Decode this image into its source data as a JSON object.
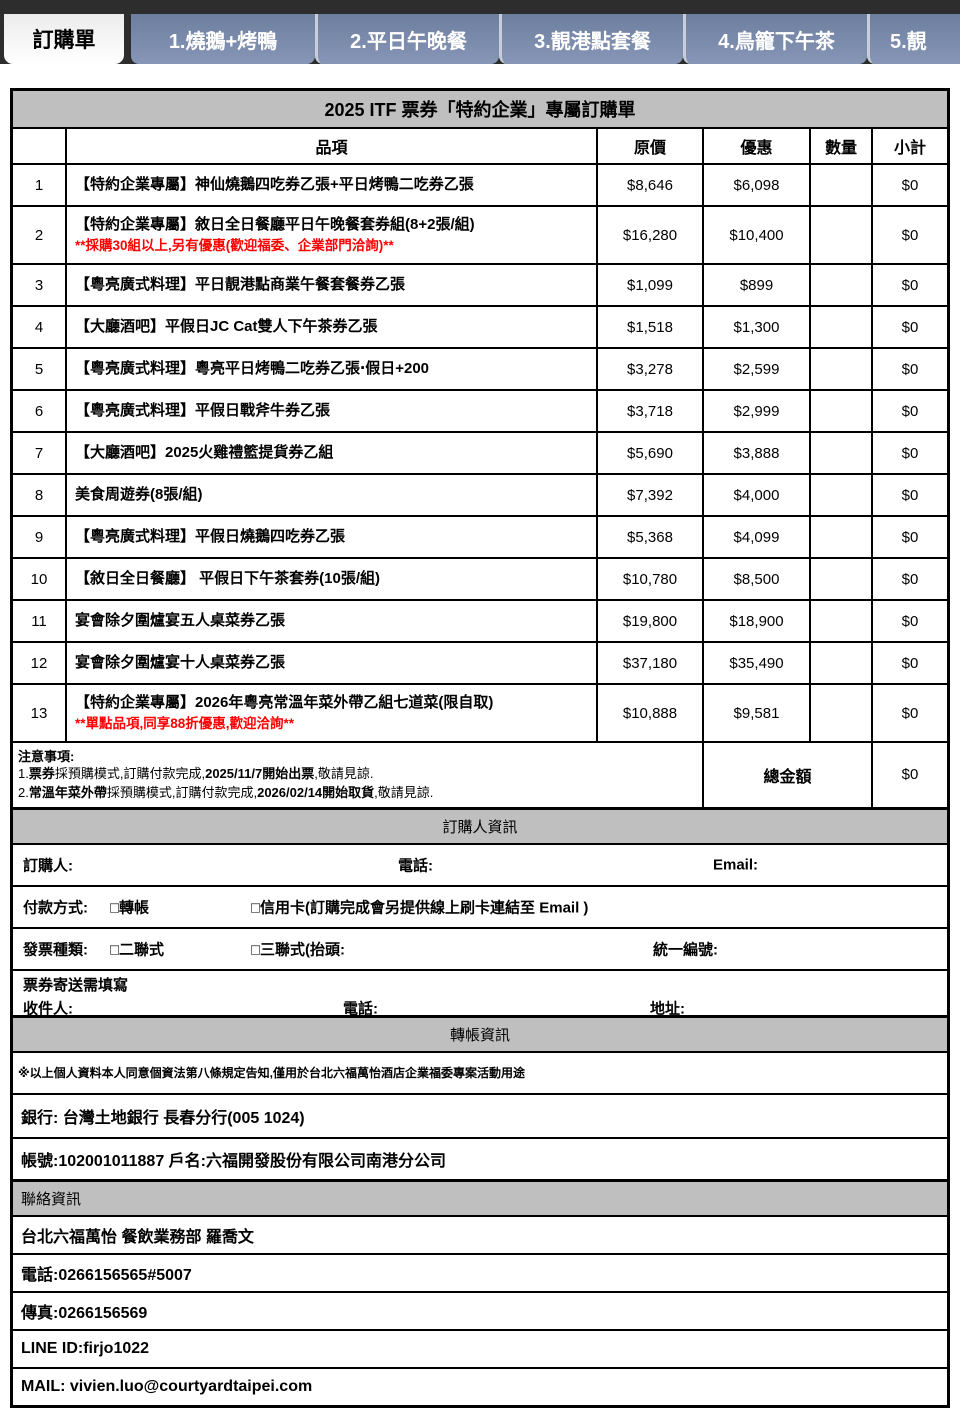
{
  "colors": {
    "topbar": "#2d2d2d",
    "tab_blue": "#7e8fb2",
    "band_gray": "#bfbfbf",
    "alert_red": "#ff0000"
  },
  "tabs": {
    "items": [
      {
        "label": "訂購單",
        "active": true
      },
      {
        "label": "1.燒鵝+烤鴨",
        "active": false
      },
      {
        "label": "2.平日午晚餐",
        "active": false
      },
      {
        "label": "3.靚港點套餐",
        "active": false
      },
      {
        "label": "4.鳥籠下午茶",
        "active": false
      },
      {
        "label": "5.靚",
        "active": false,
        "cut": true
      }
    ]
  },
  "table": {
    "title": "2025 ITF 票券「特約企業」專屬訂購單",
    "columns": [
      "",
      "品項",
      "原價",
      "優惠",
      "數量",
      "小計"
    ],
    "rows": [
      {
        "no": "1",
        "item": "【特約企業專屬】神仙燒鵝四吃券乙張+平日烤鴨二吃券乙張",
        "note": "",
        "orig": "$8,646",
        "deal": "$6,098",
        "qty": "",
        "subtotal": "$0"
      },
      {
        "no": "2",
        "item": "【特約企業專屬】敘日全日餐廳平日午晚餐套券組(8+2張/組)",
        "note": "**採購30組以上,另有優惠(歡迎福委、企業部門洽詢)**",
        "orig": "$16,280",
        "deal": "$10,400",
        "qty": "",
        "subtotal": "$0"
      },
      {
        "no": "3",
        "item": "【粵亮廣式料理】平日靚港點商業午餐套餐券乙張",
        "note": "",
        "orig": "$1,099",
        "deal": "$899",
        "qty": "",
        "subtotal": "$0"
      },
      {
        "no": "4",
        "item": "【大廳酒吧】平假日JC Cat雙人下午茶券乙張",
        "note": "",
        "orig": "$1,518",
        "deal": "$1,300",
        "qty": "",
        "subtotal": "$0"
      },
      {
        "no": "5",
        "item": "【粵亮廣式料理】粵亮平日烤鴨二吃券乙張‧假日+200",
        "note": "",
        "orig": "$3,278",
        "deal": "$2,599",
        "qty": "",
        "subtotal": "$0"
      },
      {
        "no": "6",
        "item": "【粵亮廣式料理】平假日戰斧牛券乙張",
        "note": "",
        "orig": "$3,718",
        "deal": "$2,999",
        "qty": "",
        "subtotal": "$0"
      },
      {
        "no": "7",
        "item": "【大廳酒吧】2025火雞禮籃提貨券乙組",
        "note": "",
        "orig": "$5,690",
        "deal": "$3,888",
        "qty": "",
        "subtotal": "$0"
      },
      {
        "no": "8",
        "item": "美食周遊券(8張/組)",
        "note": "",
        "orig": "$7,392",
        "deal": "$4,000",
        "qty": "",
        "subtotal": "$0"
      },
      {
        "no": "9",
        "item": "【粵亮廣式料理】平假日燒鵝四吃券乙張",
        "note": "",
        "orig": "$5,368",
        "deal": "$4,099",
        "qty": "",
        "subtotal": "$0"
      },
      {
        "no": "10",
        "item": "【敘日全日餐廳】 平假日下午茶套券(10張/組)",
        "note": "",
        "orig": "$10,780",
        "deal": "$8,500",
        "qty": "",
        "subtotal": "$0"
      },
      {
        "no": "11",
        "item": "宴會除夕圍爐宴五人桌菜券乙張",
        "note": "",
        "orig": "$19,800",
        "deal": "$18,900",
        "qty": "",
        "subtotal": "$0"
      },
      {
        "no": "12",
        "item": "宴會除夕圍爐宴十人桌菜券乙張",
        "note": "",
        "orig": "$37,180",
        "deal": "$35,490",
        "qty": "",
        "subtotal": "$0"
      },
      {
        "no": "13",
        "item": "【特約企業專屬】2026年粵亮常溫年菜外帶乙組七道菜(限自取)",
        "note": "**單點品項,同享88折優惠,歡迎洽詢**",
        "orig": "$10,888",
        "deal": "$9,581",
        "qty": "",
        "subtotal": "$0"
      }
    ],
    "notes": {
      "title": "注意事項:",
      "lines": [
        [
          {
            "t": "1."
          },
          {
            "t": "票券",
            "b": true
          },
          {
            "t": "採預購模式,訂購付款完成,"
          },
          {
            "t": "2025/11/7開始出票",
            "b": true
          },
          {
            "t": ",敬請見諒."
          }
        ],
        [
          {
            "t": "2."
          },
          {
            "t": "常溫年菜外帶",
            "b": true
          },
          {
            "t": "採預購模式,訂購付款完成,"
          },
          {
            "t": "2026/02/14開始取貨",
            "b": true
          },
          {
            "t": ",敬請見諒."
          }
        ]
      ]
    },
    "total_label": "總金額",
    "total_value": "$0"
  },
  "sections": {
    "orderer_band": "訂購人資訊",
    "buyer": {
      "name_label": "訂購人:",
      "phone_label": "電話:",
      "email_label": "Email:"
    },
    "payment": {
      "label": "付款方式:",
      "transfer": "□轉帳",
      "credit": "□信用卡(訂購完成會另提供線上刷卡連結至 Email )"
    },
    "invoice": {
      "label": "發票種類:",
      "duplicate": "□二聯式",
      "triplicate": "□三聯式(抬頭:",
      "tax_label": "統一編號:"
    },
    "shipping": {
      "title": "票券寄送需填寫",
      "recipient": "收件人:",
      "phone": "電話:",
      "address": "地址:"
    },
    "transfer_band": "轉帳資訊",
    "privacy": "※以上個人資料本人同意個資法第八條規定告知,僅用於台北六福萬怡酒店企業福委專案活動用途",
    "bank": "銀行: 台灣土地銀行  長春分行(005  1024)",
    "account": "帳號:102001011887    戶名:六福開發股份有限公司南港分公司",
    "contact_band": "聯絡資訊",
    "contact_rows": [
      "台北六福萬怡 餐飲業務部  羅喬文",
      "電話:0266156565#5007",
      "傳真:0266156569",
      "LINE ID:firjo1022",
      "MAIL: vivien.luo@courtyardtaipei.com"
    ]
  }
}
